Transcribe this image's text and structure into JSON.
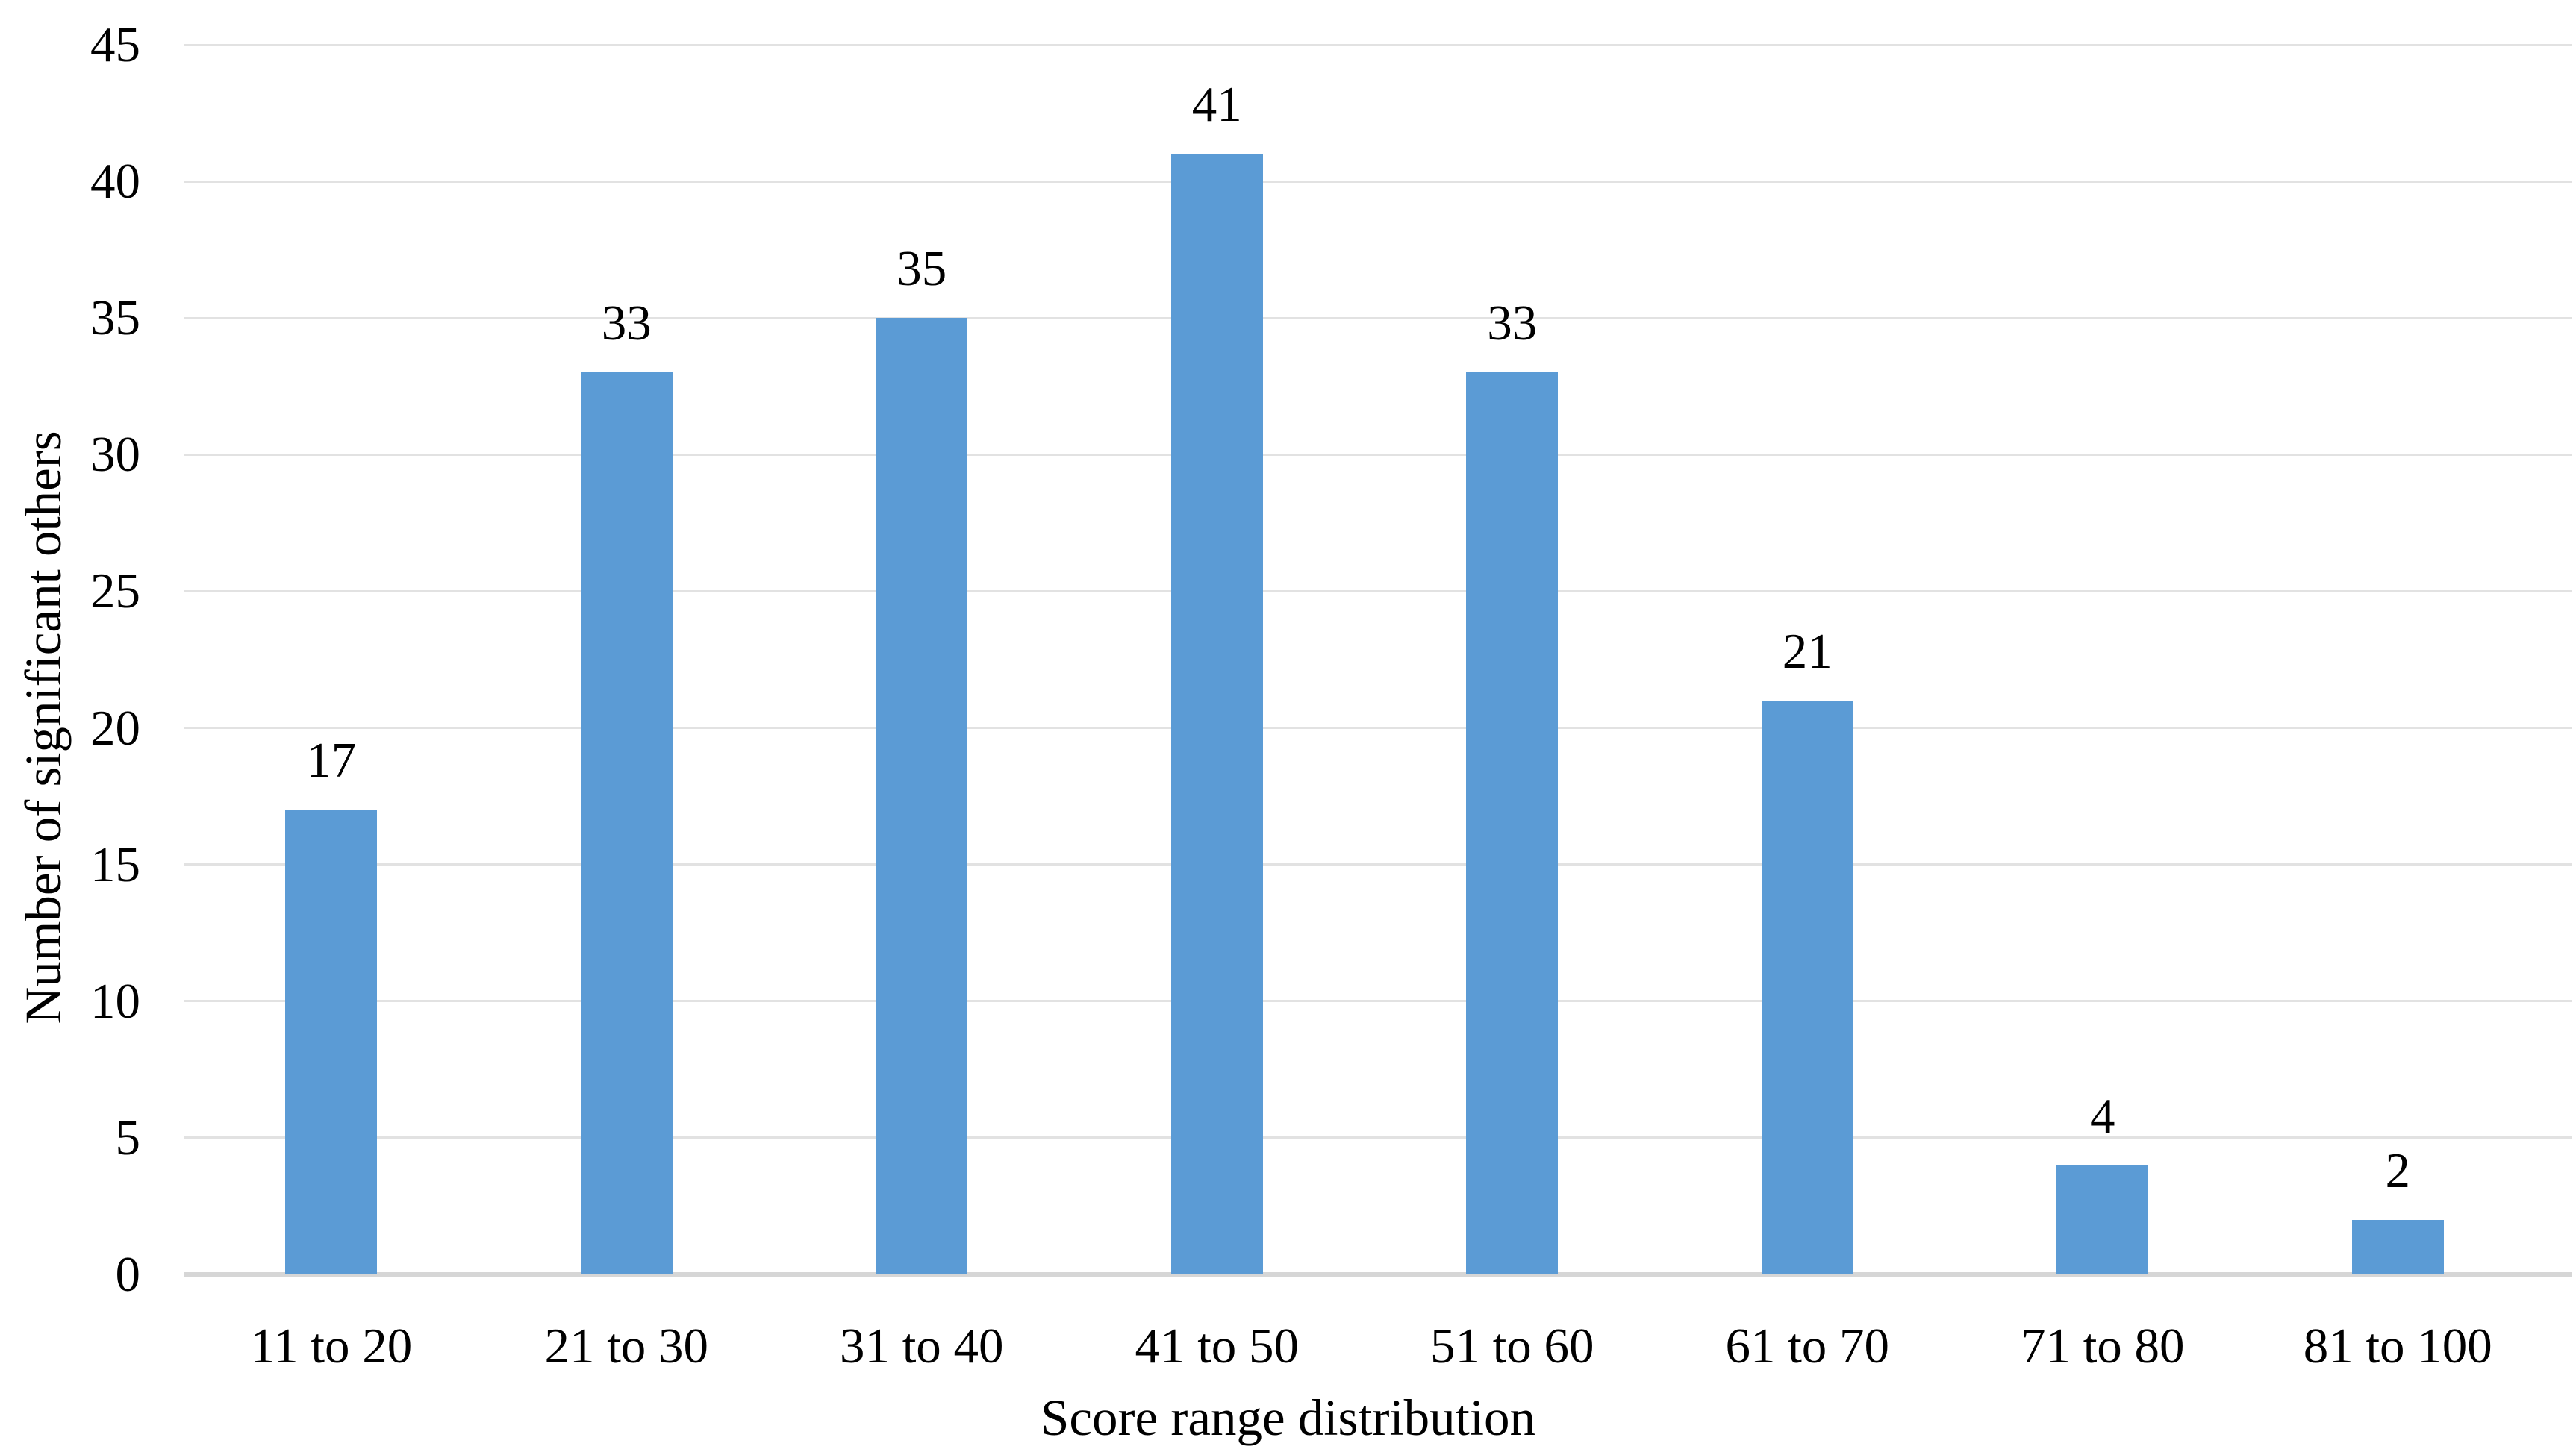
{
  "chart_data": {
    "type": "bar",
    "categories": [
      "11 to 20",
      "21 to 30",
      "31 to 40",
      "41 to 50",
      "51 to 60",
      "61 to 70",
      "71 to 80",
      "81 to 100"
    ],
    "values": [
      17,
      33,
      35,
      41,
      33,
      21,
      4,
      2
    ],
    "title": "",
    "xlabel": "Score range distribution",
    "ylabel": "Number of significant others",
    "ylim": [
      0,
      45
    ],
    "ytick_step": 5,
    "ytick_labels": [
      "0",
      "5",
      "10",
      "15",
      "20",
      "25",
      "30",
      "35",
      "40",
      "45"
    ],
    "data_labels": [
      "17",
      "33",
      "35",
      "41",
      "33",
      "21",
      "4",
      "2"
    ],
    "grid": true,
    "legend": "none",
    "bar_color": "#5b9bd5",
    "gridline_color": "#e2e2e2",
    "axis_line_color": "#d6d6d6",
    "text_color": "#000000",
    "background_color": "#ffffff"
  }
}
